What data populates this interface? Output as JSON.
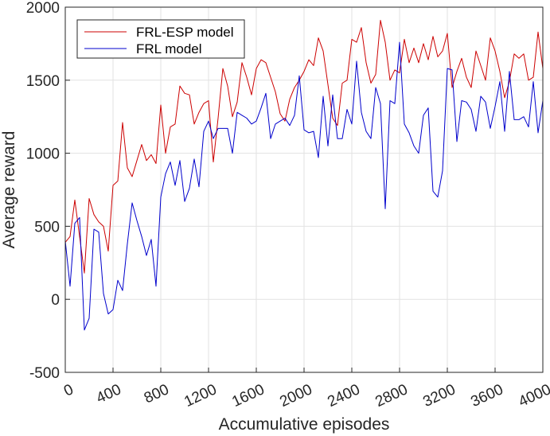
{
  "chart_data": {
    "type": "line",
    "xlabel": "Accumulative episodes",
    "ylabel": "Average reward",
    "xlim": [
      0,
      4000
    ],
    "ylim": [
      -500,
      2000
    ],
    "xticks": [
      0,
      400,
      800,
      1200,
      1600,
      2000,
      2400,
      2800,
      3200,
      3600,
      4000
    ],
    "xtick_labels": [
      "0",
      "400",
      "800",
      "1200",
      "1600",
      "2000",
      "2400",
      "2800",
      "3200",
      "3600",
      "4000"
    ],
    "yticks": [
      -500,
      0,
      500,
      1000,
      1500,
      2000
    ],
    "ytick_labels": [
      "-500",
      "0",
      "500",
      "1000",
      "1500",
      "2000"
    ],
    "grid": true,
    "legend_position": "top-left",
    "x": [
      0,
      40,
      80,
      120,
      160,
      200,
      240,
      280,
      320,
      360,
      400,
      440,
      480,
      520,
      560,
      600,
      640,
      680,
      720,
      760,
      800,
      840,
      880,
      920,
      960,
      1000,
      1040,
      1080,
      1120,
      1160,
      1200,
      1240,
      1280,
      1320,
      1360,
      1400,
      1440,
      1480,
      1520,
      1560,
      1600,
      1640,
      1680,
      1720,
      1760,
      1800,
      1840,
      1880,
      1920,
      1960,
      2000,
      2040,
      2080,
      2120,
      2160,
      2200,
      2240,
      2280,
      2320,
      2360,
      2400,
      2440,
      2480,
      2520,
      2560,
      2600,
      2640,
      2680,
      2720,
      2760,
      2800,
      2840,
      2880,
      2920,
      2960,
      3000,
      3040,
      3080,
      3120,
      3160,
      3200,
      3240,
      3280,
      3320,
      3360,
      3400,
      3440,
      3480,
      3520,
      3560,
      3600,
      3640,
      3680,
      3720,
      3760,
      3800,
      3840,
      3880,
      3920,
      3960,
      4000
    ],
    "series": [
      {
        "name": "FRL-ESP model",
        "color": "#cc0000",
        "values": [
          390,
          430,
          680,
          430,
          180,
          690,
          580,
          530,
          500,
          330,
          780,
          810,
          1210,
          900,
          840,
          950,
          1060,
          950,
          990,
          930,
          1330,
          1000,
          1180,
          1200,
          1460,
          1410,
          1400,
          1200,
          1280,
          1340,
          1360,
          940,
          1240,
          1580,
          1460,
          1250,
          1350,
          1620,
          1520,
          1400,
          1580,
          1640,
          1620,
          1520,
          1420,
          1270,
          1220,
          1370,
          1450,
          1500,
          1560,
          1640,
          1600,
          1790,
          1700,
          1470,
          1240,
          1190,
          1480,
          1500,
          1780,
          1760,
          1860,
          1620,
          1480,
          1540,
          1910,
          1760,
          1500,
          1570,
          1550,
          1780,
          1620,
          1720,
          1620,
          1750,
          1640,
          1800,
          1660,
          1700,
          1820,
          1450,
          1560,
          1650,
          1520,
          1450,
          1700,
          1600,
          1500,
          1790,
          1700,
          1560,
          1380,
          1490,
          1680,
          1650,
          1680,
          1500,
          1520,
          1830,
          1580
        ]
      },
      {
        "name": "FRL model",
        "color": "#0000cc",
        "values": [
          400,
          90,
          520,
          560,
          -210,
          -130,
          480,
          460,
          40,
          -100,
          -70,
          130,
          60,
          380,
          660,
          540,
          430,
          300,
          410,
          90,
          700,
          860,
          940,
          780,
          950,
          670,
          760,
          960,
          770,
          1150,
          1220,
          1100,
          1170,
          1170,
          1170,
          1000,
          1280,
          1260,
          1240,
          1200,
          1220,
          1310,
          1410,
          1100,
          1200,
          1220,
          1240,
          1190,
          1260,
          1530,
          1160,
          1140,
          1150,
          970,
          1390,
          1050,
          1400,
          1100,
          1100,
          1300,
          1200,
          1630,
          1280,
          1150,
          1100,
          1450,
          1340,
          620,
          1360,
          1340,
          1760,
          1200,
          1140,
          1050,
          1000,
          1260,
          1310,
          740,
          700,
          880,
          1580,
          1570,
          1080,
          1360,
          1350,
          1300,
          1150,
          1390,
          1350,
          1170,
          1320,
          1490,
          1150,
          1560,
          1230,
          1230,
          1250,
          1180,
          1490,
          1140,
          1360
        ]
      }
    ]
  }
}
